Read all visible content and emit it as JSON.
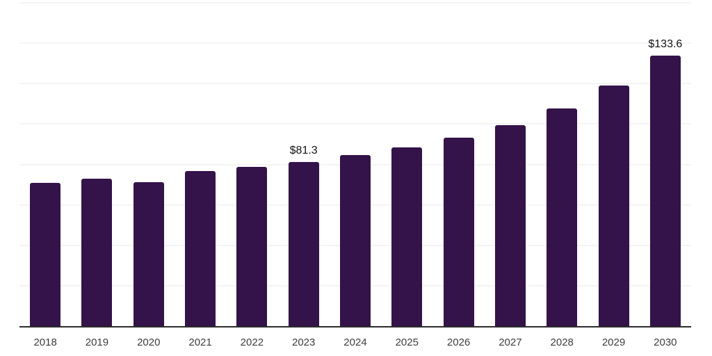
{
  "chart_data": {
    "type": "bar",
    "title": "",
    "xlabel": "",
    "ylabel": "",
    "categories": [
      "2018",
      "2019",
      "2020",
      "2021",
      "2022",
      "2023",
      "2024",
      "2025",
      "2026",
      "2027",
      "2028",
      "2029",
      "2030"
    ],
    "values": [
      71.0,
      72.9,
      71.2,
      76.9,
      78.8,
      81.3,
      84.5,
      88.3,
      93.2,
      99.5,
      107.8,
      118.9,
      133.6
    ],
    "annotations": [
      {
        "category": "2023",
        "text": "$81.3"
      },
      {
        "category": "2030",
        "text": "$133.6"
      }
    ],
    "ylim": [
      0,
      160
    ],
    "grid_step": 20,
    "grid": "horizontal",
    "y_axis_labels": "none",
    "legend_position": "none",
    "colors": {
      "bar": "#331349",
      "gridline": "#f4f4f4",
      "axis_line": "#2b2b2b",
      "tick_label": "#3d3d3d",
      "annotation": "#111111",
      "background": "#ffffff"
    }
  }
}
